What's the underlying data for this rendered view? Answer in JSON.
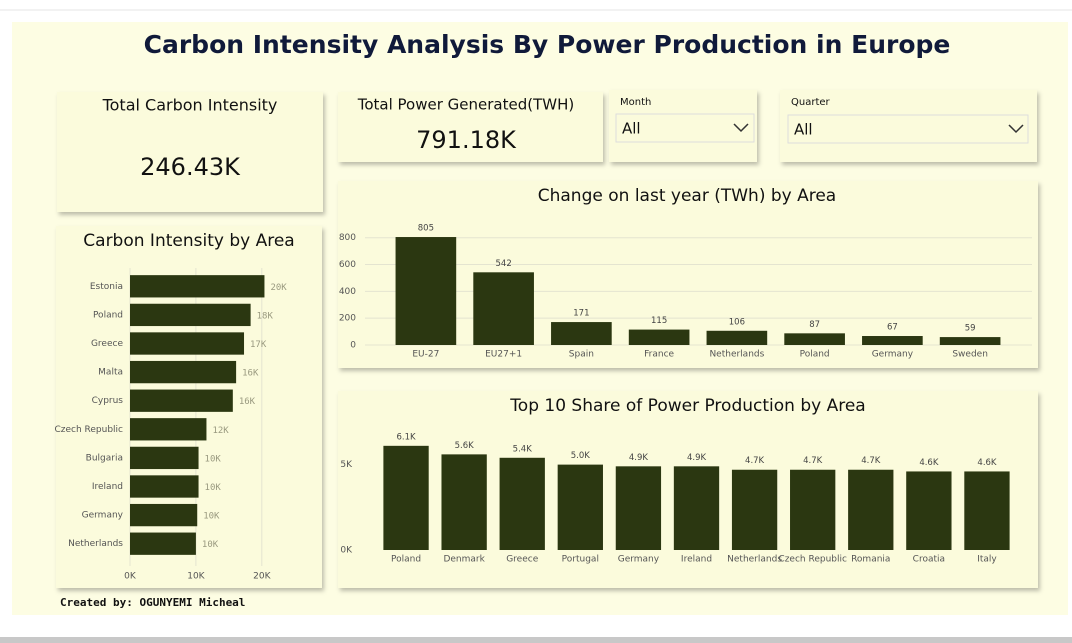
{
  "title": "Carbon Intensity Analysis By Power Production in Europe",
  "cards": [
    {
      "label": "Total Carbon Intensity",
      "value": "246.43K"
    },
    {
      "label": "Total Power Generated(TWH)",
      "value": "791.18K"
    }
  ],
  "slicers": [
    {
      "label": "Month",
      "selection": "All"
    },
    {
      "label": "Quarter",
      "selection": "All"
    }
  ],
  "footer": "Created by: OGUNYEMI Micheal",
  "chart_data": [
    {
      "type": "bar",
      "orientation": "horizontal",
      "title": "Carbon Intensity by Area",
      "categories": [
        "Estonia",
        "Poland",
        "Greece",
        "Malta",
        "Cyprus",
        "Czech Republic",
        "Bulgaria",
        "Ireland",
        "Germany",
        "Netherlands"
      ],
      "values": [
        20400,
        18300,
        17300,
        16100,
        15600,
        11600,
        10400,
        10400,
        10200,
        10000
      ],
      "value_labels": [
        "20K",
        "18K",
        "17K",
        "16K",
        "16K",
        "12K",
        "10K",
        "10K",
        "10K",
        "10K"
      ],
      "color": "#2b3711",
      "xlim": [
        0,
        22000
      ],
      "xticks": [
        {
          "value": 0,
          "label": "0K"
        },
        {
          "value": 10000,
          "label": "10K"
        },
        {
          "value": 20000,
          "label": "20K"
        }
      ],
      "grid": true
    },
    {
      "type": "bar",
      "orientation": "vertical",
      "title": "Change on last year (TWh) by Area",
      "categories": [
        "EU-27",
        "EU27+1",
        "Spain",
        "France",
        "Netherlands",
        "Poland",
        "Germany",
        "Sweden"
      ],
      "values": [
        805,
        542,
        171,
        115,
        106,
        87,
        67,
        59
      ],
      "color": "#2b3711",
      "ylim": [
        0,
        850
      ],
      "yticks": [
        0,
        200,
        400,
        600,
        800
      ],
      "grid": true
    },
    {
      "type": "bar",
      "orientation": "vertical",
      "title": "Top 10 Share of Power Production by Area",
      "categories": [
        "Poland",
        "Denmark",
        "Greece",
        "Portugal",
        "Germany",
        "Ireland",
        "Netherlands",
        "Czech Republic",
        "Romania",
        "Croatia",
        "Italy"
      ],
      "values": [
        6100,
        5600,
        5400,
        5000,
        4900,
        4900,
        4700,
        4700,
        4700,
        4600,
        4600
      ],
      "value_labels": [
        "6.1K",
        "5.6K",
        "5.4K",
        "5.0K",
        "4.9K",
        "4.9K",
        "4.7K",
        "4.7K",
        "4.7K",
        "4.6K",
        "4.6K"
      ],
      "color": "#2b3711",
      "ylim": [
        0,
        6500
      ],
      "yticks": [
        {
          "value": 0,
          "label": "0K"
        },
        {
          "value": 5000,
          "label": "5K"
        }
      ],
      "grid": false
    }
  ]
}
